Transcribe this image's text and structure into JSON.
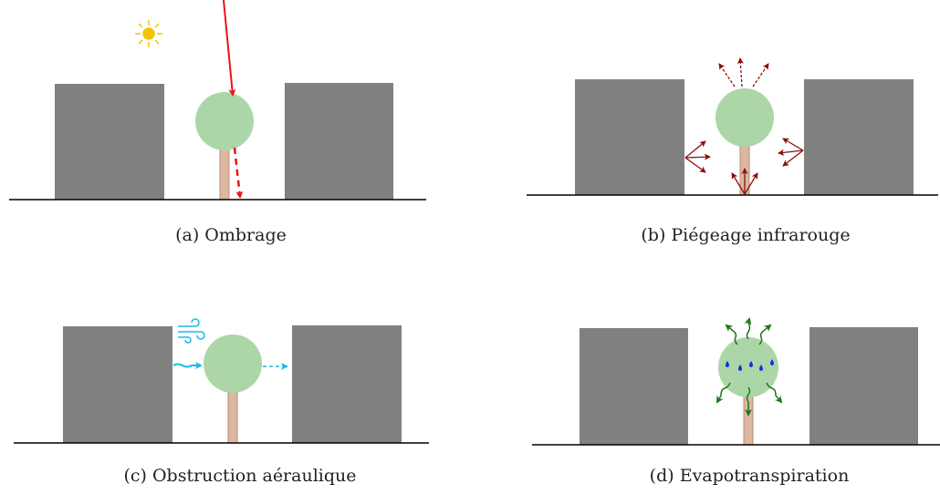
{
  "panels": [
    {
      "caption": "(a) Ombrage"
    },
    {
      "caption": "(b) Piégeage infrarouge"
    },
    {
      "caption": "(c) Obstruction aéraulique"
    },
    {
      "caption": "(d) Evapotranspiration"
    }
  ]
}
